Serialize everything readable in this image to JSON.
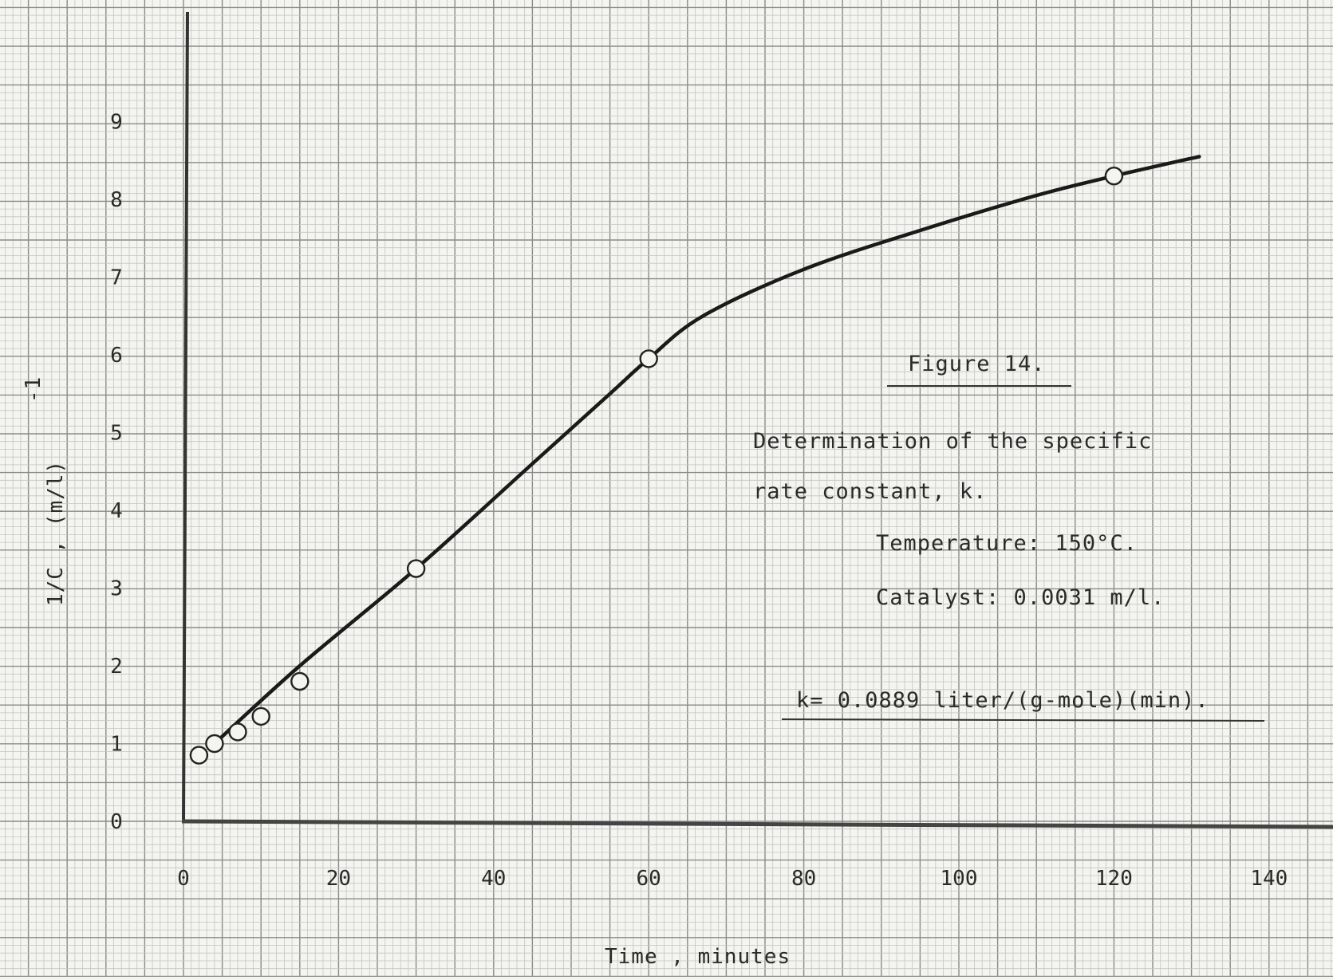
{
  "chart_data": {
    "type": "line",
    "title": "",
    "xlabel": "Time , minutes",
    "ylabel": "1/C , (m/l)",
    "ylabel_superscript": "-1",
    "xlim": [
      0,
      150
    ],
    "ylim": [
      0,
      10
    ],
    "x_ticks": [
      "0",
      "20",
      "40",
      "60",
      "80",
      "100",
      "120",
      "140"
    ],
    "y_ticks": [
      "0",
      "1",
      "2",
      "3",
      "4",
      "5",
      "6",
      "7",
      "8",
      "9"
    ],
    "grid": true,
    "series": [
      {
        "name": "",
        "kind": "points",
        "x": [
          2,
          4,
          7,
          10,
          15,
          30,
          60,
          120
        ],
        "y": [
          0.85,
          1.0,
          1.15,
          1.35,
          1.8,
          3.25,
          5.95,
          8.3
        ]
      },
      {
        "name": "",
        "kind": "smooth-curve",
        "x": [
          4,
          15,
          30,
          45,
          55,
          60,
          67,
          80,
          95,
          110,
          120,
          131
        ],
        "y": [
          1.0,
          2.0,
          3.25,
          4.6,
          5.5,
          5.95,
          6.5,
          7.1,
          7.6,
          8.05,
          8.3,
          8.55
        ]
      }
    ],
    "annotations": {
      "figure_label": "Figure 14.",
      "description_line1": "Determination of the specific",
      "description_line2": "rate constant, k.",
      "temperature": "Temperature:  150°C.",
      "catalyst": "Catalyst:  0.0031 m/l.",
      "rate_constant": "k= 0.0889 liter/(g-mole)(min)."
    }
  }
}
